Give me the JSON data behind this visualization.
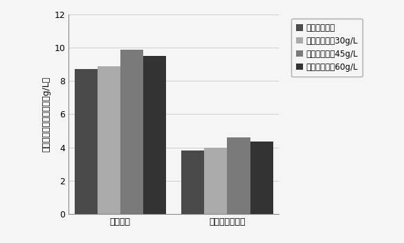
{
  "categories": [
    "油脂得率",
    "花生四烯酸得率"
  ],
  "series": [
    {
      "label": "未添加紫球藻",
      "values": [
        8.7,
        3.8
      ],
      "color": "#4a4a4a"
    },
    {
      "label": "紫球藻添加量30g/L",
      "values": [
        8.9,
        4.0
      ],
      "color": "#aaaaaa"
    },
    {
      "label": "紫球藻添加量45g/L",
      "values": [
        9.9,
        4.6
      ],
      "color": "#7a7a7a"
    },
    {
      "label": "紫球藻添加量60g/L",
      "values": [
        9.5,
        4.35
      ],
      "color": "#333333"
    }
  ],
  "ylabel": "油脂及花生四烯酸得率（g/L）",
  "ylim": [
    0,
    12
  ],
  "yticks": [
    0,
    2,
    4,
    6,
    8,
    10,
    12
  ],
  "bar_width": 0.12,
  "group_centers": [
    0.22,
    0.78
  ],
  "background_color": "#f5f5f5",
  "grid_color": "#cccccc",
  "legend_fontsize": 8.5,
  "axis_fontsize": 9,
  "tick_fontsize": 9
}
